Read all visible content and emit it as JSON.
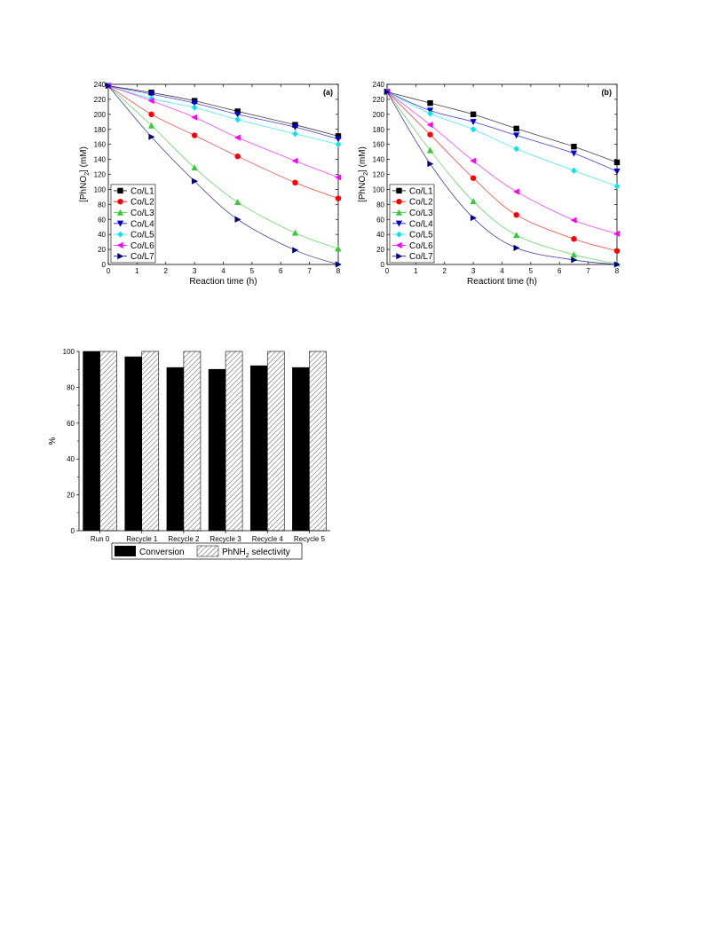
{
  "colors": {
    "Co/L1": "#000000",
    "Co/L2": "#ff0000",
    "Co/L3": "#33cc33",
    "Co/L4": "#0000cc",
    "Co/L5": "#00e5ee",
    "Co/L6": "#ff00ff",
    "Co/L7": "#000080",
    "conversion": "#000000",
    "selectivity_hatch": "#555555"
  },
  "chart_data": [
    {
      "type": "line",
      "panel_label": "(a)",
      "xlabel": "Reaction time (h)",
      "ylabel_main": "[PhNO",
      "ylabel_sub": "2",
      "ylabel_end": "] (mM)",
      "xlim": [
        0,
        8
      ],
      "ylim": [
        0,
        240
      ],
      "xticks": [
        0,
        1,
        2,
        3,
        4,
        5,
        6,
        7,
        8
      ],
      "yticks": [
        0,
        20,
        40,
        60,
        80,
        100,
        120,
        140,
        160,
        180,
        200,
        220,
        240
      ],
      "legend_position": "bottom-left",
      "x": [
        0,
        1.5,
        3,
        4.5,
        6.5,
        8
      ],
      "series": [
        {
          "name": "Co/L1",
          "marker": "square",
          "values": [
            238,
            229,
            218,
            204,
            186,
            171
          ]
        },
        {
          "name": "Co/L2",
          "marker": "circle",
          "values": [
            238,
            200,
            172,
            144,
            109,
            88
          ]
        },
        {
          "name": "Co/L3",
          "marker": "triangle-up",
          "values": [
            238,
            185,
            129,
            83,
            42,
            21
          ]
        },
        {
          "name": "Co/L4",
          "marker": "triangle-down",
          "values": [
            238,
            227,
            215,
            200,
            183,
            167
          ]
        },
        {
          "name": "Co/L5",
          "marker": "diamond",
          "values": [
            238,
            221,
            209,
            193,
            174,
            160
          ]
        },
        {
          "name": "Co/L6",
          "marker": "triangle-left",
          "values": [
            238,
            218,
            196,
            169,
            138,
            116
          ]
        },
        {
          "name": "Co/L7",
          "marker": "triangle-right",
          "values": [
            238,
            170,
            111,
            60,
            19,
            0
          ]
        }
      ]
    },
    {
      "type": "line",
      "panel_label": "(b)",
      "xlabel": "Reactiont time (h)",
      "ylabel_main": "[PhNO",
      "ylabel_sub": "2",
      "ylabel_end": "] (mM)",
      "xlim": [
        0,
        8
      ],
      "ylim": [
        0,
        240
      ],
      "xticks": [
        0,
        1,
        2,
        3,
        4,
        5,
        6,
        7,
        8
      ],
      "yticks": [
        0,
        20,
        40,
        60,
        80,
        100,
        120,
        140,
        160,
        180,
        200,
        220,
        240
      ],
      "legend_position": "bottom-left",
      "x": [
        0,
        1.5,
        3,
        4.5,
        6.5,
        8
      ],
      "series": [
        {
          "name": "Co/L1",
          "marker": "square",
          "values": [
            230,
            215,
            200,
            181,
            157,
            136
          ]
        },
        {
          "name": "Co/L2",
          "marker": "circle",
          "values": [
            230,
            173,
            115,
            66,
            34,
            18
          ]
        },
        {
          "name": "Co/L3",
          "marker": "triangle-up",
          "values": [
            230,
            152,
            84,
            39,
            13,
            1
          ]
        },
        {
          "name": "Co/L4",
          "marker": "triangle-down",
          "values": [
            230,
            205,
            190,
            172,
            148,
            124
          ]
        },
        {
          "name": "Co/L5",
          "marker": "diamond",
          "values": [
            230,
            201,
            180,
            154,
            125,
            104
          ]
        },
        {
          "name": "Co/L6",
          "marker": "triangle-left",
          "values": [
            230,
            186,
            138,
            97,
            59,
            41
          ]
        },
        {
          "name": "Co/L7",
          "marker": "triangle-right",
          "values": [
            230,
            134,
            62,
            22,
            6,
            0
          ]
        }
      ]
    },
    {
      "type": "bar",
      "ylabel": "%",
      "ylim": [
        0,
        100
      ],
      "yticks": [
        0,
        20,
        40,
        60,
        80,
        100
      ],
      "legend_position": "bottom",
      "categories": [
        "Run 0",
        "Recycle 1",
        "Recycle 2",
        "Recycle 3",
        "Recycle 4",
        "Recycle 5"
      ],
      "series": [
        {
          "name": "Conversion",
          "fill": "solid",
          "values": [
            100,
            97,
            91,
            90,
            92,
            91
          ]
        },
        {
          "name": "PhNH",
          "name_sub": "2",
          "name_end": " selectivity",
          "fill": "hatched",
          "values": [
            100,
            100,
            100,
            100,
            100,
            100
          ]
        }
      ]
    }
  ]
}
